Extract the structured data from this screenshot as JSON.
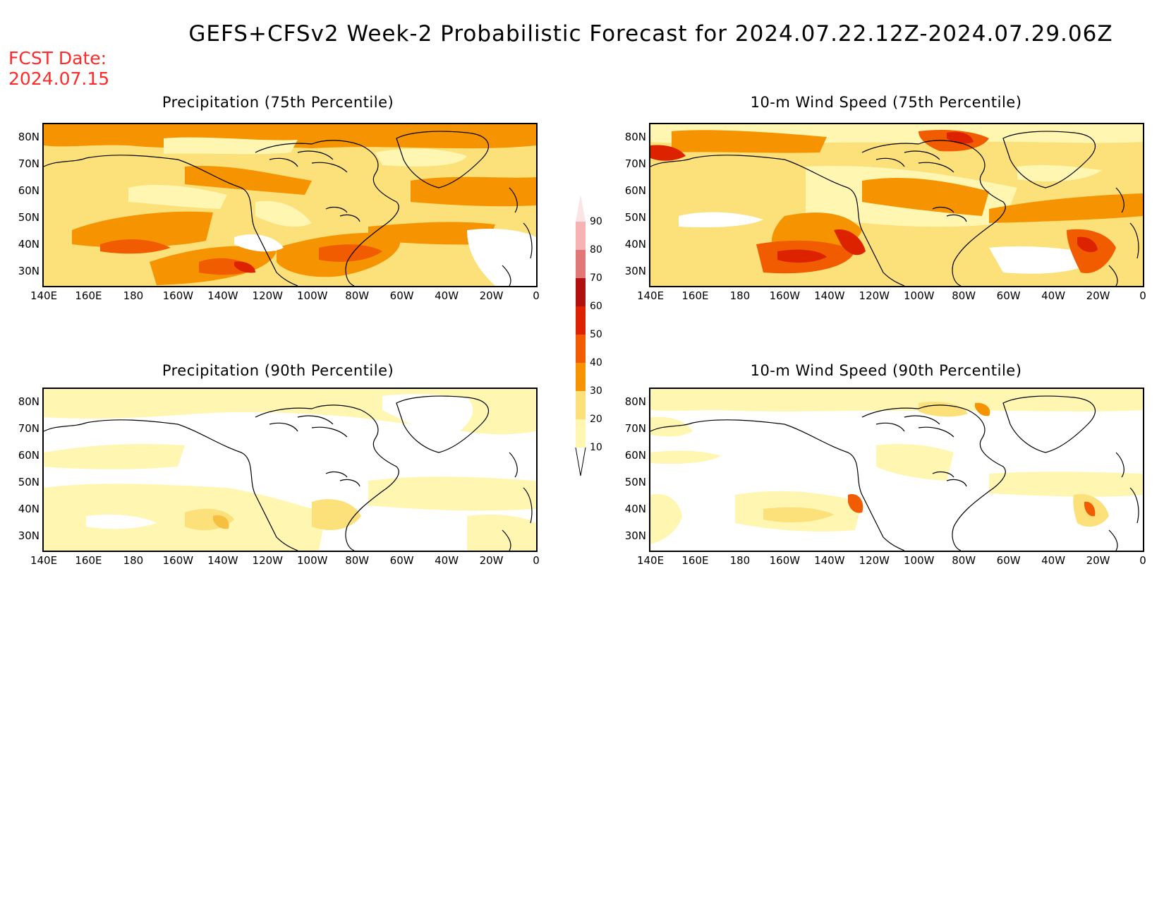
{
  "header": {
    "title": "GEFS+CFSv2 Week-2 Probabilistic Forecast for 2024.07.22.12Z-2024.07.29.06Z",
    "fcst_label": "FCST Date:",
    "fcst_date": "2024.07.15"
  },
  "panels": [
    {
      "title": "Precipitation (75th Percentile)"
    },
    {
      "title": "10-m Wind Speed (75th Percentile)"
    },
    {
      "title": "Precipitation (90th Percentile)"
    },
    {
      "title": "10-m Wind Speed (90th Percentile)"
    }
  ],
  "axes": {
    "lat_labels": [
      "80N",
      "70N",
      "60N",
      "50N",
      "40N",
      "30N"
    ],
    "lon_labels": [
      "140E",
      "160E",
      "180",
      "160W",
      "140W",
      "120W",
      "100W",
      "80W",
      "60W",
      "40W",
      "20W",
      "0"
    ]
  },
  "colorbar": {
    "labels": [
      "90",
      "80",
      "70",
      "60",
      "50",
      "40",
      "30",
      "20",
      "10"
    ],
    "colors": [
      "#f7b3b3",
      "#e07878",
      "#b01010",
      "#dd2200",
      "#f25c00",
      "#f59300",
      "#fce07a",
      "#fff6b2"
    ]
  },
  "colors": {
    "fcst_text": "#ff2a2a",
    "coastline": "#000000"
  }
}
